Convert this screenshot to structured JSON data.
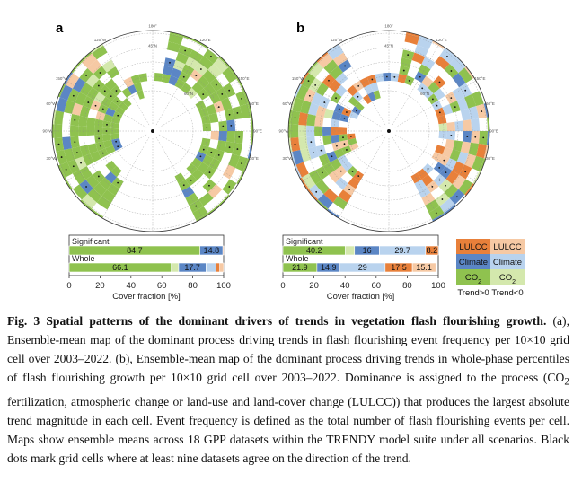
{
  "panels": {
    "a": {
      "letter": "a"
    },
    "b": {
      "letter": "b"
    }
  },
  "map_labels": {
    "graticule": [
      "180°",
      "45°N",
      "120°E",
      "120°W",
      "60°W",
      "60°E",
      "30°E",
      "30°W",
      "150°E",
      "150°W",
      "90°E",
      "90°W",
      "60°N"
    ]
  },
  "colors": {
    "lulcc_pos": "#e8803a",
    "lulcc_neg": "#f6c9a4",
    "climate_pos": "#5b86c5",
    "climate_neg": "#b9d3ee",
    "co2_pos": "#8fc24f",
    "co2_neg": "#d4e8ad",
    "ocean": "#ffffff",
    "land_unknown": "#ffffff"
  },
  "chart_data": [
    {
      "type": "bar",
      "panel": "a",
      "orientation": "horizontal-stacked",
      "categories": [
        "Significant",
        "Whole"
      ],
      "xlabel": "Cover fraction [%]",
      "xlim": [
        0,
        100
      ],
      "xticks": [
        "0",
        "20",
        "40",
        "60",
        "80",
        "100"
      ],
      "series": [
        {
          "category": "Significant",
          "segments": [
            {
              "color": "#8fc24f",
              "value": 84.7,
              "label": "84.7"
            },
            {
              "color": "#5b86c5",
              "value": 14.8,
              "label": "14.8"
            },
            {
              "color": "#e8803a",
              "value": 0.5,
              "label": ""
            }
          ]
        },
        {
          "category": "Whole",
          "segments": [
            {
              "color": "#8fc24f",
              "value": 66.1,
              "label": "66.1"
            },
            {
              "color": "#d4e8ad",
              "value": 4.8,
              "label": ""
            },
            {
              "color": "#5b86c5",
              "value": 17.7,
              "label": "17.7"
            },
            {
              "color": "#b9d3ee",
              "value": 6.4,
              "label": ""
            },
            {
              "color": "#e8803a",
              "value": 2.5,
              "label": ""
            },
            {
              "color": "#f6c9a4",
              "value": 2.5,
              "label": ""
            }
          ]
        }
      ]
    },
    {
      "type": "bar",
      "panel": "b",
      "orientation": "horizontal-stacked",
      "categories": [
        "Significant",
        "Whole"
      ],
      "xlabel": "Cover fraction [%]",
      "xlim": [
        0,
        100
      ],
      "xticks": [
        "0",
        "20",
        "40",
        "60",
        "80",
        "100"
      ],
      "series": [
        {
          "category": "Significant",
          "segments": [
            {
              "color": "#8fc24f",
              "value": 40.2,
              "label": "40.2"
            },
            {
              "color": "#d4e8ad",
              "value": 5.9,
              "label": ""
            },
            {
              "color": "#5b86c5",
              "value": 16,
              "label": "16"
            },
            {
              "color": "#b9d3ee",
              "value": 29.7,
              "label": "29.7"
            },
            {
              "color": "#e8803a",
              "value": 8.2,
              "label": "8.2"
            }
          ]
        },
        {
          "category": "Whole",
          "segments": [
            {
              "color": "#8fc24f",
              "value": 21.9,
              "label": "21.9"
            },
            {
              "color": "#5b86c5",
              "value": 14.9,
              "label": "14.9"
            },
            {
              "color": "#b9d3ee",
              "value": 29,
              "label": "29"
            },
            {
              "color": "#e8803a",
              "value": 17.5,
              "label": "17.5"
            },
            {
              "color": "#f6c9a4",
              "value": 15.1,
              "label": "15.1"
            }
          ]
        }
      ]
    }
  ],
  "legend": {
    "rows": [
      {
        "pos_label": "LULCC",
        "neg_label": "LULCC",
        "pos_color": "#e8803a",
        "neg_color": "#f6c9a4"
      },
      {
        "pos_label": "Climate",
        "neg_label": "Climate",
        "pos_color": "#5b86c5",
        "neg_color": "#b9d3ee"
      },
      {
        "pos_label": "CO",
        "pos_sub": "2",
        "neg_label": "CO",
        "neg_sub": "2",
        "pos_color": "#8fc24f",
        "neg_color": "#d4e8ad"
      }
    ],
    "trend_pos": "Trend>0",
    "trend_neg": "Trend<0"
  },
  "caption": {
    "title": "Fig. 3 Spatial patterns of the dominant drivers of trends in vegetation flash flourishing growth.",
    "text_parts": [
      " (a), Ensemble-mean map of the dominant process driving trends in flash flourishing event frequency per 10×10 grid cell over 2003–2022. (b), Ensemble-mean map of the dominant process driving trends in whole-phase percentiles of flash flourishing growth per 10×10 grid cell over 2003–2022. Dominance is assigned to the process (CO",
      "2",
      " fertilization, atmospheric change or land-use and land-cover change (LULCC)) that produces the largest absolute trend magnitude in each cell. Event frequency is defined as the total number of flash flourishing events per cell. Maps show ensemble means across 18 GPP datasets within the TRENDY model suite under all scenarios. Black dots mark grid cells where at least nine datasets agree on the direction of the trend."
    ]
  }
}
